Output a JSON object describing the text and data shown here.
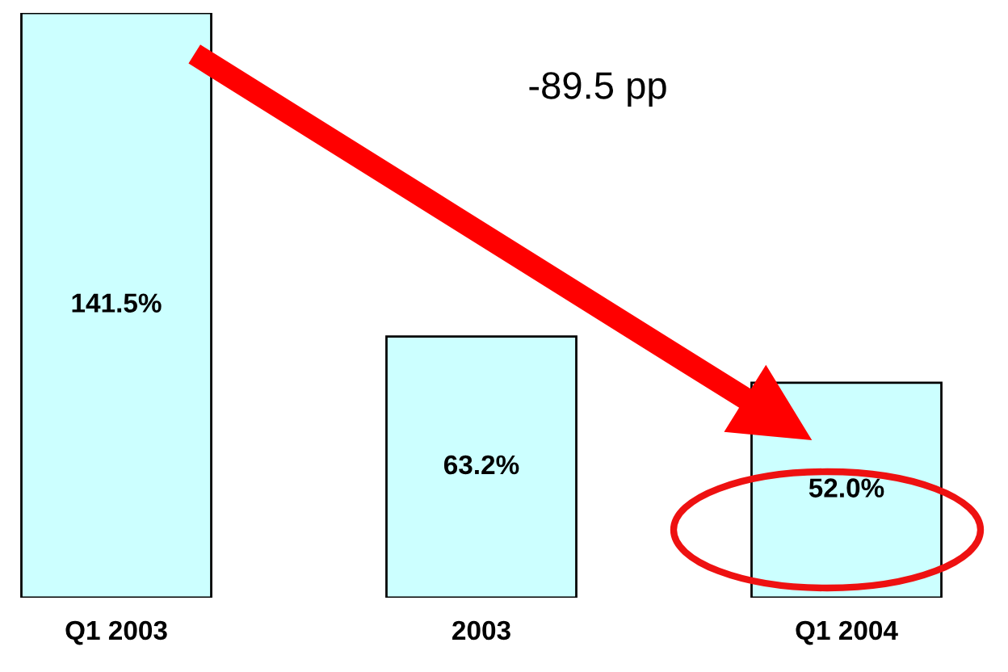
{
  "chart_data": {
    "type": "bar",
    "categories": [
      "Q1 2003",
      "2003",
      "Q1 2004"
    ],
    "values": [
      141.5,
      63.2,
      52.0
    ],
    "value_labels": [
      "141.5%",
      "63.2%",
      "52.0%"
    ],
    "color": "#ccffff",
    "annotations": [
      "-89.5 pp"
    ]
  }
}
